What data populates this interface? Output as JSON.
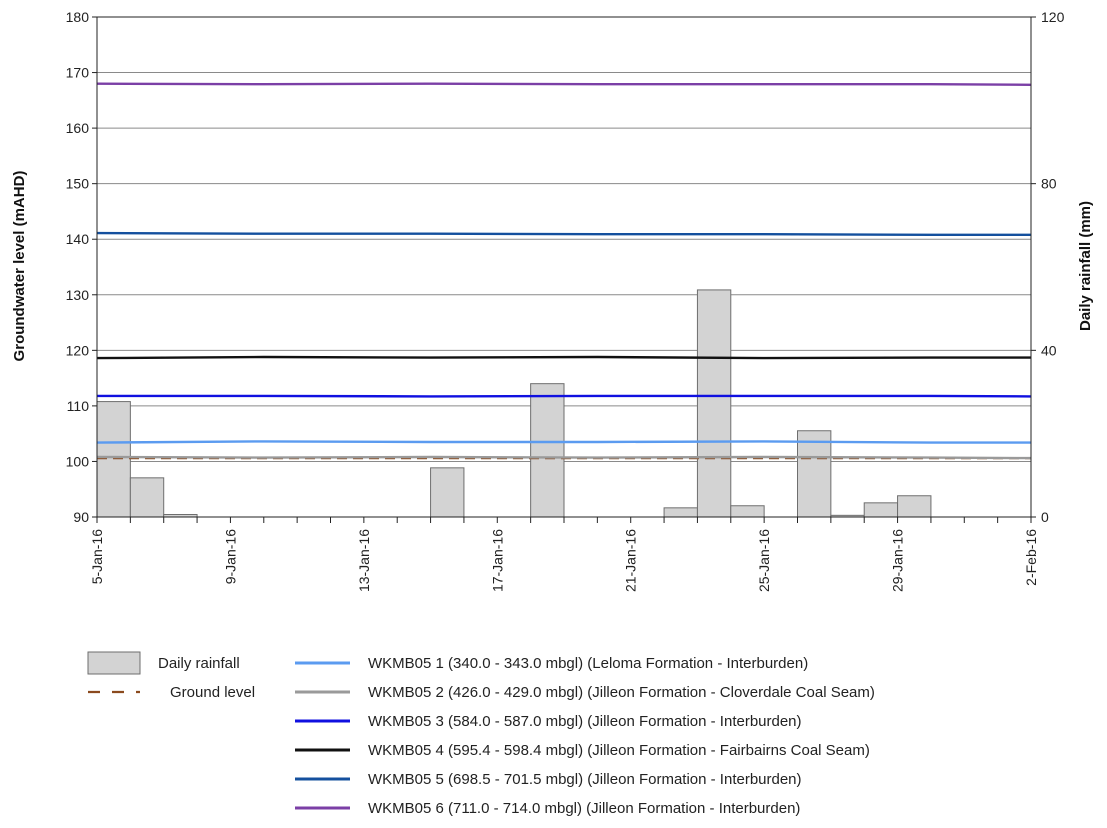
{
  "chart_data": {
    "type": "line",
    "title": "",
    "ylabel": "Groundwater level (mAHD)",
    "y2label": "Daily rainfall (mm)",
    "ylim": [
      90,
      180
    ],
    "y_ticks": [
      90,
      100,
      110,
      120,
      130,
      140,
      150,
      160,
      170,
      180
    ],
    "y2lim": [
      0,
      120
    ],
    "y2_ticks": [
      0,
      40,
      80,
      120
    ],
    "xlim": [
      "2016-01-05",
      "2016-02-02"
    ],
    "x_tick_labels": [
      "5-Jan-16",
      "9-Jan-16",
      "13-Jan-16",
      "17-Jan-16",
      "21-Jan-16",
      "25-Jan-16",
      "29-Jan-16",
      "2-Feb-16"
    ],
    "x_tick_dates": [
      "2016-01-05",
      "2016-01-09",
      "2016-01-13",
      "2016-01-17",
      "2016-01-21",
      "2016-01-25",
      "2016-01-29",
      "2016-02-02"
    ],
    "grid": "horizontal",
    "legend_position": "bottom",
    "rainfall": {
      "name": "Daily rainfall",
      "color": "#d3d3d3",
      "dates": [
        "2016-01-05",
        "2016-01-06",
        "2016-01-07",
        "2016-01-08",
        "2016-01-15",
        "2016-01-18",
        "2016-01-22",
        "2016-01-23",
        "2016-01-24",
        "2016-01-26",
        "2016-01-27",
        "2016-01-28",
        "2016-01-29"
      ],
      "values": [
        27.7,
        9.4,
        0.6,
        0,
        11.8,
        32,
        2.2,
        54.5,
        2.7,
        20.7,
        0.4,
        3.4,
        5.1
      ]
    },
    "ground_level": {
      "name": "Ground level",
      "color": "#8b4a1e",
      "value": 100.6
    },
    "series": [
      {
        "name": "WKMB05 1 (340.0 - 343.0 mbgl) (Leloma Formation - Interburden)",
        "color": "#5b9bf0",
        "x": [
          "2016-01-05",
          "2016-01-10",
          "2016-01-15",
          "2016-01-20",
          "2016-01-25",
          "2016-01-30",
          "2016-02-02"
        ],
        "values": [
          103.4,
          103.6,
          103.5,
          103.5,
          103.6,
          103.4,
          103.4
        ]
      },
      {
        "name": "WKMB05 2 (426.0 - 429.0 mbgl) (Jilleon Formation - Cloverdale Coal Seam)",
        "color": "#9a9a9a",
        "x": [
          "2016-01-05",
          "2016-01-10",
          "2016-01-15",
          "2016-01-20",
          "2016-01-25",
          "2016-01-30",
          "2016-02-02"
        ],
        "values": [
          100.8,
          100.7,
          100.8,
          100.7,
          100.8,
          100.7,
          100.6
        ]
      },
      {
        "name": "WKMB05 3 (584.0 - 587.0 mbgl) (Jilleon Formation - Interburden)",
        "color": "#1010e0",
        "x": [
          "2016-01-05",
          "2016-01-10",
          "2016-01-15",
          "2016-01-20",
          "2016-01-25",
          "2016-01-30",
          "2016-02-02"
        ],
        "values": [
          111.8,
          111.8,
          111.7,
          111.8,
          111.8,
          111.8,
          111.7
        ]
      },
      {
        "name": "WKMB05 4 (595.4 - 598.4 mbgl) (Jilleon Formation - Fairbairns Coal Seam)",
        "color": "#111111",
        "x": [
          "2016-01-05",
          "2016-01-10",
          "2016-01-15",
          "2016-01-20",
          "2016-01-25",
          "2016-01-30",
          "2016-02-02"
        ],
        "values": [
          118.6,
          118.8,
          118.7,
          118.8,
          118.6,
          118.7,
          118.7
        ]
      },
      {
        "name": "WKMB05 5 (698.5 - 701.5 mbgl) (Jilleon Formation - Interburden)",
        "color": "#14509e",
        "x": [
          "2016-01-05",
          "2016-01-10",
          "2016-01-15",
          "2016-01-20",
          "2016-01-25",
          "2016-01-30",
          "2016-02-02"
        ],
        "values": [
          141.1,
          141.0,
          141.0,
          140.9,
          140.9,
          140.8,
          140.8
        ]
      },
      {
        "name": "WKMB05 6 (711.0 - 714.0 mbgl) (Jilleon Formation - Interburden)",
        "color": "#7b3fa6",
        "x": [
          "2016-01-05",
          "2016-01-10",
          "2016-01-15",
          "2016-01-20",
          "2016-01-25",
          "2016-01-30",
          "2016-02-02"
        ],
        "values": [
          168.0,
          167.9,
          168.0,
          167.9,
          167.9,
          167.9,
          167.8
        ]
      }
    ]
  }
}
